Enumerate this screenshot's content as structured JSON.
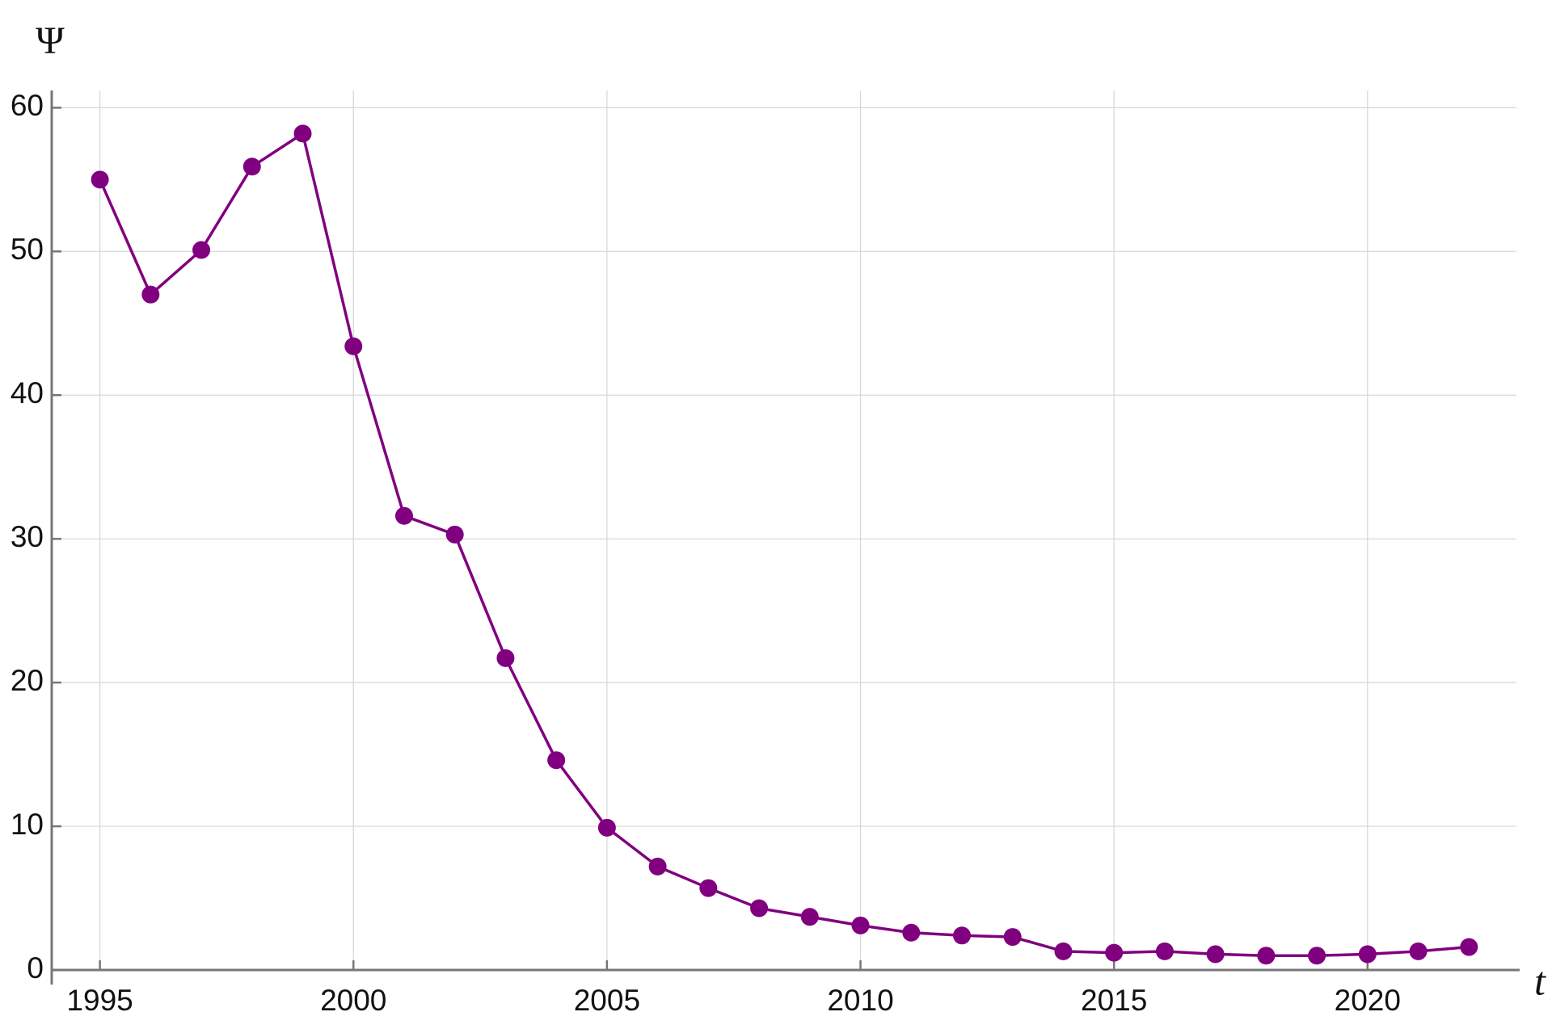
{
  "chart_data": {
    "type": "line",
    "x_label": "t",
    "y_label": "Ψ",
    "x": [
      1995,
      1996,
      1997,
      1998,
      1999,
      2000,
      2001,
      2002,
      2003,
      2004,
      2005,
      2006,
      2007,
      2008,
      2009,
      2010,
      2011,
      2012,
      2013,
      2014,
      2015,
      2016,
      2017,
      2018,
      2019,
      2020,
      2021,
      2022
    ],
    "series": [
      {
        "color": "#800080",
        "values": [
          55.0,
          47.0,
          50.1,
          55.9,
          58.2,
          43.4,
          31.6,
          30.3,
          21.7,
          14.6,
          9.9,
          7.2,
          5.7,
          4.3,
          3.7,
          3.1,
          2.6,
          2.4,
          2.3,
          1.3,
          1.2,
          1.3,
          1.1,
          1.0,
          1.0,
          1.1,
          1.3,
          1.6
        ]
      }
    ],
    "xlim": [
      1994.05,
      2023
    ],
    "ylim": [
      0,
      61.2
    ],
    "xticks": [
      1995,
      2000,
      2005,
      2010,
      2015,
      2020
    ],
    "yticks": [
      0,
      10,
      20,
      30,
      40,
      50,
      60
    ],
    "grid": true
  }
}
